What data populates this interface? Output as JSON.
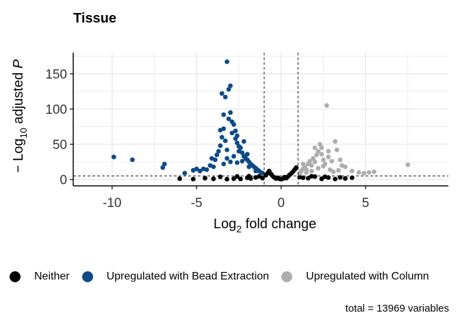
{
  "chart_data": {
    "type": "scatter",
    "title": "Tissue",
    "xlabel": {
      "prefix": "Log",
      "sub": "2",
      "suffix": " fold change"
    },
    "ylabel": {
      "prefix": "− Log",
      "sub": "10",
      "middle": " adjusted ",
      "italic": "P"
    },
    "xlim": [
      -12.3,
      9.9
    ],
    "ylim": [
      -9,
      180
    ],
    "x_ticks": [
      -10,
      -5,
      0,
      5
    ],
    "x_tick_labels": [
      "-10",
      "-5",
      "0",
      "5"
    ],
    "y_ticks": [
      0,
      50,
      100,
      150
    ],
    "y_tick_labels": [
      "0",
      "50",
      "100",
      "150"
    ],
    "grid": true,
    "fold_change_cutoffs": [
      -1,
      1
    ],
    "pvalue_cutoff_line": 5,
    "legend_position": "bottom",
    "series": [
      {
        "name": "Neither",
        "color": "#000000",
        "points": [
          [
            -3.2,
            0.5
          ],
          [
            -2.8,
            1.2
          ],
          [
            -2.4,
            0.8
          ],
          [
            -2.0,
            2.5
          ],
          [
            -1.8,
            1.5
          ],
          [
            -1.5,
            3.0
          ],
          [
            -1.3,
            4.5
          ],
          [
            -1.1,
            2.0
          ],
          [
            -0.9,
            6.0
          ],
          [
            -0.8,
            9.0
          ],
          [
            -0.7,
            12.0
          ],
          [
            -0.6,
            8.0
          ],
          [
            -0.5,
            5.0
          ],
          [
            -0.4,
            3.0
          ],
          [
            -0.3,
            1.5
          ],
          [
            -0.2,
            2.5
          ],
          [
            -0.1,
            1.0
          ],
          [
            0.0,
            0.5
          ],
          [
            0.1,
            1.2
          ],
          [
            0.2,
            3.5
          ],
          [
            0.3,
            2.0
          ],
          [
            0.4,
            4.0
          ],
          [
            0.5,
            6.5
          ],
          [
            0.6,
            8.5
          ],
          [
            0.7,
            11.0
          ],
          [
            0.8,
            14.0
          ],
          [
            0.9,
            17.0
          ],
          [
            1.1,
            3.5
          ],
          [
            1.3,
            2.5
          ],
          [
            1.6,
            1.8
          ],
          [
            2.0,
            4.2
          ],
          [
            2.4,
            1.0
          ],
          [
            2.8,
            2.8
          ],
          [
            3.2,
            0.7
          ],
          [
            3.5,
            3.0
          ],
          [
            3.8,
            1.5
          ],
          [
            4.2,
            2.5
          ],
          [
            -4.0,
            1.0
          ],
          [
            -4.5,
            2.0
          ],
          [
            -5.2,
            0.6
          ],
          [
            -6.0,
            1.2
          ],
          [
            -3.6,
            3.8
          ],
          [
            -2.6,
            4.4
          ],
          [
            -1.9,
            4.8
          ],
          [
            1.8,
            4.6
          ],
          [
            2.6,
            4.0
          ]
        ]
      },
      {
        "name": "Upregulated with Bead Extraction",
        "color": "#0E4A86",
        "points": [
          [
            -9.9,
            32
          ],
          [
            -8.8,
            28
          ],
          [
            -6.9,
            22
          ],
          [
            -7.0,
            17
          ],
          [
            -5.7,
            9
          ],
          [
            -5.0,
            15
          ],
          [
            -4.8,
            12
          ],
          [
            -4.4,
            14
          ],
          [
            -4.2,
            20
          ],
          [
            -4.0,
            18
          ],
          [
            -3.9,
            28
          ],
          [
            -3.8,
            35
          ],
          [
            -3.6,
            48
          ],
          [
            -3.5,
            60
          ],
          [
            -3.4,
            72
          ],
          [
            -3.3,
            55
          ],
          [
            -3.2,
            42
          ],
          [
            -3.1,
            86
          ],
          [
            -3.0,
            95
          ],
          [
            -2.9,
            66
          ],
          [
            -2.8,
            78
          ],
          [
            -2.7,
            58
          ],
          [
            -2.6,
            52
          ],
          [
            -2.5,
            47
          ],
          [
            -2.4,
            45
          ],
          [
            -2.3,
            38
          ],
          [
            -2.2,
            33
          ],
          [
            -2.1,
            30
          ],
          [
            -2.0,
            28
          ],
          [
            -1.9,
            25
          ],
          [
            -1.8,
            22
          ],
          [
            -1.7,
            20
          ],
          [
            -1.6,
            18
          ],
          [
            -1.5,
            16
          ],
          [
            -1.4,
            14
          ],
          [
            -1.3,
            12
          ],
          [
            -1.2,
            10
          ],
          [
            -1.1,
            9
          ],
          [
            -2.8,
            33
          ],
          [
            -3.2,
            30
          ],
          [
            -2.5,
            40
          ],
          [
            -3.0,
            25
          ],
          [
            -2.0,
            36
          ],
          [
            -2.6,
            24
          ],
          [
            -3.4,
            22
          ],
          [
            -3.0,
            133
          ],
          [
            -3.1,
            128
          ],
          [
            -3.5,
            122
          ],
          [
            -3.3,
            117
          ],
          [
            -3.2,
            167
          ],
          [
            -3.4,
            92
          ],
          [
            -2.7,
            69
          ],
          [
            -3.6,
            70
          ],
          [
            -2.9,
            82
          ],
          [
            -2.6,
            62
          ],
          [
            -2.2,
            54
          ],
          [
            -3.7,
            40
          ],
          [
            -4.1,
            30
          ],
          [
            -2.3,
            26
          ],
          [
            -1.9,
            18
          ],
          [
            -1.5,
            12
          ],
          [
            -4.6,
            15
          ],
          [
            -5.2,
            13
          ]
        ]
      },
      {
        "name": "Upregulated with Column",
        "color": "#AEAEAE",
        "points": [
          [
            1.1,
            9
          ],
          [
            1.2,
            12
          ],
          [
            1.3,
            15
          ],
          [
            1.4,
            18
          ],
          [
            1.5,
            14
          ],
          [
            1.6,
            22
          ],
          [
            1.7,
            26
          ],
          [
            1.8,
            20
          ],
          [
            1.9,
            30
          ],
          [
            2.0,
            25
          ],
          [
            2.1,
            35
          ],
          [
            2.2,
            40
          ],
          [
            2.3,
            50
          ],
          [
            2.4,
            45
          ],
          [
            2.5,
            28
          ],
          [
            2.6,
            22
          ],
          [
            2.7,
            105
          ],
          [
            2.8,
            32
          ],
          [
            3.0,
            26
          ],
          [
            3.2,
            54
          ],
          [
            3.3,
            42
          ],
          [
            3.5,
            28
          ],
          [
            3.8,
            18
          ],
          [
            4.2,
            12
          ],
          [
            4.6,
            10
          ],
          [
            4.9,
            9
          ],
          [
            5.2,
            10
          ],
          [
            5.5,
            11
          ],
          [
            7.5,
            21
          ],
          [
            1.5,
            10
          ],
          [
            1.8,
            12
          ],
          [
            2.2,
            16
          ],
          [
            2.5,
            19
          ],
          [
            2.9,
            14
          ],
          [
            3.1,
            11
          ],
          [
            3.4,
            13
          ],
          [
            1.3,
            22
          ],
          [
            2.0,
            45
          ],
          [
            2.4,
            36
          ],
          [
            2.8,
            40
          ],
          [
            3.6,
            20
          ]
        ]
      }
    ]
  },
  "legend": {
    "items": [
      {
        "label": "Neither",
        "color": "#000000"
      },
      {
        "label": "Upregulated with Bead Extraction",
        "color": "#0E4A86"
      },
      {
        "label": "Upregulated with Column",
        "color": "#AEAEAE"
      }
    ]
  },
  "caption": "total = 13969 variables"
}
